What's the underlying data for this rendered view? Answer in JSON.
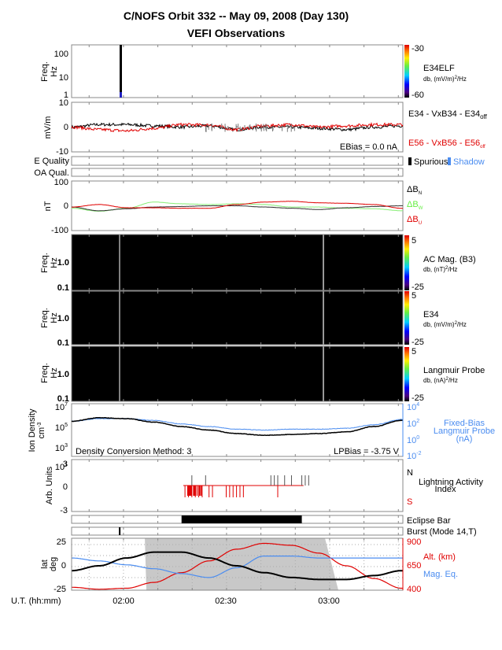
{
  "title": {
    "line1": "C/NOFS Orbit 332  --  May 09, 2008 (Day 130)",
    "line2": "VEFI Observations"
  },
  "colors": {
    "black": "#000000",
    "red": "#e00000",
    "blue": "#4a8cf0",
    "green": "#66ee44",
    "night": "#c8c8c8"
  },
  "elf": {
    "ylabel1": "Freq.",
    "ylabel2": "Hz",
    "ticks": [
      "100",
      "10",
      "1"
    ],
    "name": "E34ELF",
    "units": "db, (mV/m)",
    "units_sup": "2",
    "units_end": "/Hz",
    "cbar_max": "-30",
    "cbar_min": "-60"
  },
  "efield": {
    "ylabel": "mV/m",
    "ticks": [
      "10",
      "0",
      "-10"
    ],
    "s1_a": "E34 - VxB34 - E34",
    "s1_sub": "off",
    "s2_a": "E56 - VxB56 - E56",
    "s2_sub": "off",
    "ebias": "EBias = 0.0 nA"
  },
  "quality": {
    "e_label": "E Quality",
    "oa_label": "OA Qual.",
    "spurious": "Spurious",
    "shadow": "Shadow"
  },
  "db": {
    "ylabel": "nT",
    "ticks": [
      "100",
      "0",
      "-100"
    ],
    "n_main": "ΔB",
    "n_sub": "N",
    "w_main": "ΔB",
    "w_sub": "W",
    "u_main": "ΔB",
    "u_sub": "U"
  },
  "acmag": {
    "ylabel1": "Freq.",
    "ylabel2": "Hz",
    "ticks": [
      "1.0",
      "0.1"
    ],
    "name": "AC Mag. (B3)",
    "units": "db, (nT)",
    "units_sup": "2",
    "units_end": "/Hz",
    "cbar_max": "5",
    "cbar_min": "-25"
  },
  "e34": {
    "ylabel1": "Freq.",
    "ylabel2": "Hz",
    "ticks": [
      "1.0",
      "0.1"
    ],
    "name": "E34",
    "units": "db, (mV/m)",
    "units_sup": "2",
    "units_end": "/Hz",
    "cbar_max": "5",
    "cbar_min": "-25"
  },
  "lp": {
    "ylabel1": "Freq.",
    "ylabel2": "Hz",
    "ticks": [
      "1.0",
      "0.1"
    ],
    "name": "Langmuir Probe",
    "units": "db, (nA)",
    "units_sup": "2",
    "units_end": "/Hz",
    "cbar_max": "5",
    "cbar_min": "-25"
  },
  "density": {
    "ylabel1": "Ion Density",
    "ylabel2": "cm",
    "ylabel2_sup": "-3",
    "left_base": "10",
    "left_exps": [
      "7",
      "5",
      "3",
      "1"
    ],
    "right_base": "10",
    "right_exps": [
      "4",
      "2",
      "0",
      "-2"
    ],
    "right1": "Fixed-Bias",
    "right2": "Langmuir Probe",
    "right3": "(nA)",
    "method": "Density Conversion Method: 3",
    "lpbias": "LPBias = -3.75 V"
  },
  "lightning": {
    "ylabel": "Arb. Units",
    "ticks": [
      "3",
      "0",
      "-3"
    ],
    "n": "N",
    "s": "S",
    "title1": "Lightning Activity",
    "title2": "Index"
  },
  "eclipse": {
    "label": "Eclipse Bar"
  },
  "burst": {
    "label": "Burst (Mode 14,T)"
  },
  "orbit": {
    "ylabel1": "lat",
    "ylabel2": "deg",
    "ticks": [
      "25",
      "0",
      "-25"
    ],
    "alt_ticks": [
      "900",
      "650",
      "400"
    ],
    "alt_label": "Alt. (km)",
    "mag_label": "Mag. Eq."
  },
  "xaxis": {
    "label": "U.T. (hh:mm)",
    "ticks": [
      "02:00",
      "02:30",
      "03:00"
    ]
  },
  "chart_data": {
    "type": "line",
    "title": "C/NOFS Orbit 332 -- May 09, 2008 (Day 130) VEFI Observations",
    "x_unit": "minutes after 01:45 UT",
    "x": [
      0,
      8,
      16,
      24,
      32,
      40,
      48,
      56,
      64,
      72,
      80,
      88,
      96
    ],
    "panels": [
      {
        "name": "E field",
        "ylim": [
          -10,
          10
        ],
        "series": [
          {
            "name": "E34 - VxB34 - E34off",
            "values": [
              0,
              1,
              1,
              0.5,
              0,
              0.5,
              -1,
              0,
              0,
              -0.5,
              -1,
              0,
              0.5
            ]
          },
          {
            "name": "E56 - VxB56 - E56off",
            "values": [
              0,
              -1,
              -1.5,
              -0.5,
              1,
              0.8,
              -1,
              0.5,
              1,
              0,
              0.5,
              1,
              1
            ]
          }
        ]
      },
      {
        "name": "Delta B",
        "ylim": [
          -100,
          100
        ],
        "series": [
          {
            "name": "dBN",
            "values": [
              -5,
              -20,
              -12,
              -5,
              -3,
              0,
              0,
              -5,
              -10,
              -15,
              -8,
              -3,
              0
            ]
          },
          {
            "name": "dBW",
            "values": [
              -10,
              -22,
              -10,
              15,
              8,
              5,
              8,
              5,
              -5,
              -5,
              -10,
              -12,
              -20
            ]
          },
          {
            "name": "dBU",
            "values": [
              -5,
              5,
              -8,
              -8,
              -10,
              -10,
              5,
              15,
              18,
              12,
              10,
              5,
              -10
            ]
          }
        ]
      },
      {
        "name": "Ion Density (log10 cm^-3)",
        "ylim": [
          1,
          7
        ],
        "series": [
          {
            "name": "Ion Density",
            "values": [
              5.0,
              5.4,
              5.3,
              4.9,
              4.4,
              4.0,
              3.6,
              3.4,
              3.5,
              3.6,
              3.8,
              4.4,
              5.1
            ]
          }
        ]
      },
      {
        "name": "Fixed-Bias Langmuir Probe (log10 nA)",
        "ylim": [
          -2,
          4
        ],
        "series": [
          {
            "name": "LP current",
            "values": [
              2.0,
              2.3,
              2.3,
              2.1,
              1.7,
              1.4,
              1.1,
              1.0,
              1.1,
              1.1,
              1.2,
              1.6,
              2.2
            ]
          }
        ]
      },
      {
        "name": "Orbit latitude (deg)",
        "ylim": [
          -25,
          25
        ],
        "series": [
          {
            "name": "lat",
            "values": [
              -5,
              0,
              8,
              14,
              14,
              8,
              0,
              -7,
              -12,
              -14,
              -14,
              -10,
              -5
            ]
          }
        ]
      },
      {
        "name": "Altitude (km)",
        "ylim": [
          400,
          900
        ],
        "series": [
          {
            "name": "Alt.",
            "values": [
              430,
              410,
              420,
              480,
              580,
              700,
              820,
              880,
              860,
              780,
              650,
              520,
              420
            ]
          }
        ]
      },
      {
        "name": "Mag. Eq. (deg)",
        "ylim": [
          -25,
          25
        ],
        "series": [
          {
            "name": "Mag. Eq.",
            "values": [
              8,
              5,
              1,
              -3,
              -8,
              -12,
              -2,
              10,
              10,
              8,
              8,
              8,
              8
            ]
          }
        ]
      }
    ],
    "spectrogram_bursts_min": [
      10,
      17,
      20,
      53,
      89
    ],
    "lightning_n_min": [
      35,
      39,
      58,
      59,
      60,
      62,
      64,
      67,
      68,
      69
    ],
    "lightning_s_min": [
      33,
      34,
      35,
      36,
      37,
      38,
      40,
      41,
      45,
      46,
      47,
      48,
      49,
      50,
      60
    ],
    "eclipse_min": [
      32,
      67
    ],
    "burst_min": 14,
    "night_min": [
      22,
      57
    ],
    "colorbars": [
      {
        "name": "E34ELF",
        "range": [
          -60,
          -30
        ]
      },
      {
        "name": "AC Mag. (B3)",
        "range": [
          -25,
          5
        ]
      },
      {
        "name": "E34",
        "range": [
          -25,
          5
        ]
      },
      {
        "name": "Langmuir Probe",
        "range": [
          -25,
          5
        ]
      }
    ]
  }
}
